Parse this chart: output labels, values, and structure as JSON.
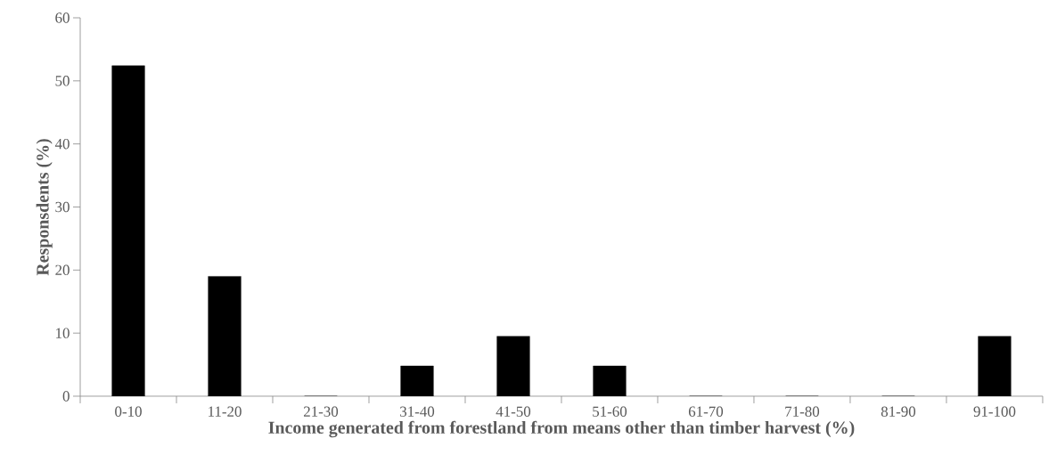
{
  "chart_data": {
    "type": "bar",
    "xlabel": "Income generated from forestland from means other than timber harvest (%)",
    "ylabel": "Responsdents (%)",
    "categories": [
      "0-10",
      "11-20",
      "21-30",
      "31-40",
      "41-50",
      "51-60",
      "61-70",
      "71-80",
      "81-90",
      "91-100"
    ],
    "values": [
      52.4,
      19.0,
      0,
      4.8,
      9.5,
      4.8,
      0,
      0,
      0,
      9.5
    ],
    "color": "#000000",
    "ylim": [
      0,
      60
    ],
    "yticks": [
      0,
      10,
      20,
      30,
      40,
      50,
      60
    ],
    "grid": false
  }
}
